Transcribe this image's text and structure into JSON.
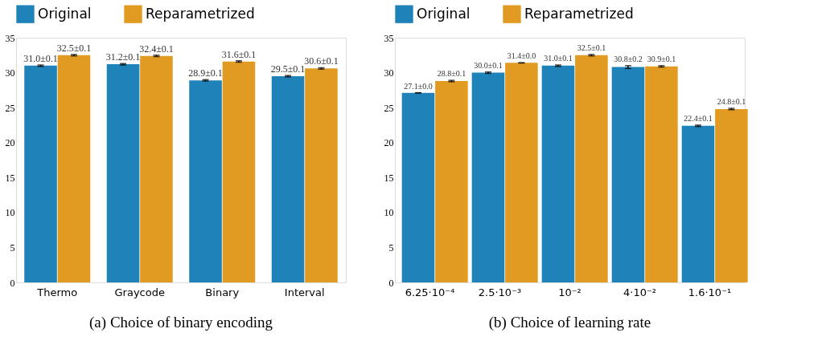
{
  "chart_data": [
    {
      "type": "bar",
      "title": "(a) Choice of binary encoding",
      "categories": [
        "Thermo",
        "Graycode",
        "Binary",
        "Interval"
      ],
      "series": [
        {
          "name": "Original",
          "color": "#1f82b9",
          "values": [
            31.0,
            31.2,
            28.9,
            29.5
          ],
          "errors": [
            0.1,
            0.1,
            0.1,
            0.1
          ],
          "value_labels": [
            "31.0±0.1",
            "31.2±0.1",
            "28.9±0.1",
            "29.5±0.1"
          ]
        },
        {
          "name": "Reparametrized",
          "color": "#e29b22",
          "values": [
            32.5,
            32.4,
            31.6,
            30.6
          ],
          "errors": [
            0.1,
            0.1,
            0.1,
            0.1
          ],
          "value_labels": [
            "32.5±0.1",
            "32.4±0.1",
            "31.6±0.1",
            "30.6±0.1"
          ]
        }
      ],
      "ylim": [
        0,
        35
      ],
      "yticks": [
        0,
        5,
        10,
        15,
        20,
        25,
        30,
        35
      ],
      "grid": false,
      "legend": "top"
    },
    {
      "type": "bar",
      "title": "(b) Choice of learning rate",
      "categories": [
        "6.25·10⁻⁴",
        "2.5·10⁻³",
        "10⁻²",
        "4·10⁻²",
        "1.6·10⁻¹"
      ],
      "series": [
        {
          "name": "Original",
          "color": "#1f82b9",
          "values": [
            27.1,
            30.0,
            31.0,
            30.8,
            22.4
          ],
          "errors": [
            0.0,
            0.1,
            0.1,
            0.2,
            0.1
          ],
          "value_labels": [
            "27.1±0.0",
            "30.0±0.1",
            "31.0±0.1",
            "30.8±0.2",
            "22.4±0.1"
          ]
        },
        {
          "name": "Reparametrized",
          "color": "#e29b22",
          "values": [
            28.8,
            31.4,
            32.5,
            30.9,
            24.8
          ],
          "errors": [
            0.1,
            0.0,
            0.1,
            0.1,
            0.1
          ],
          "value_labels": [
            "28.8±0.1",
            "31.4±0.0",
            "32.5±0.1",
            "30.9±0.1",
            "24.8±0.1"
          ]
        }
      ],
      "ylim": [
        0,
        35
      ],
      "yticks": [
        0,
        5,
        10,
        15,
        20,
        25,
        30,
        35
      ],
      "grid": false,
      "legend": "top"
    }
  ]
}
